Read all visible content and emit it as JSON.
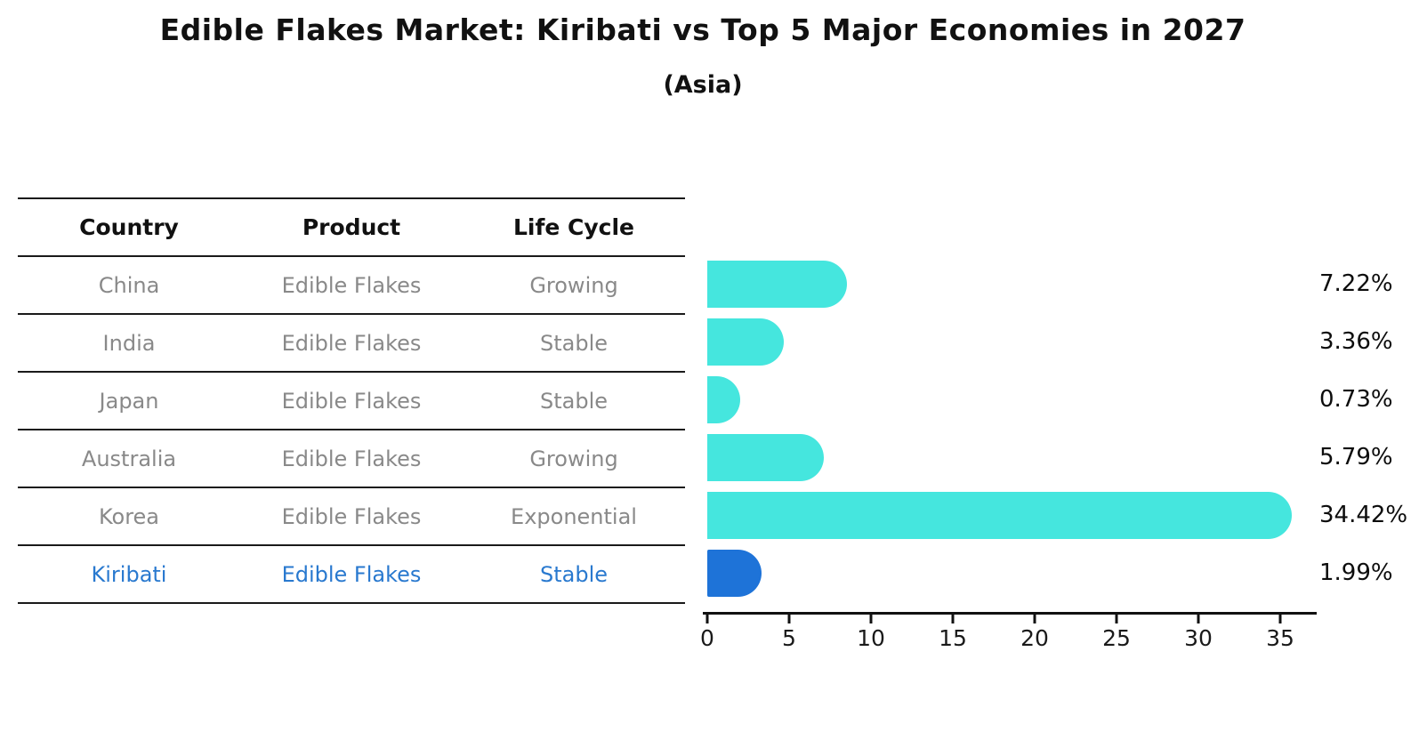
{
  "title": "Edible Flakes Market: Kiribati vs Top 5 Major Economies in 2027",
  "subtitle": "(Asia)",
  "table": {
    "columns": [
      "Country",
      "Product",
      "Life Cycle"
    ],
    "rows": [
      {
        "country": "China",
        "product": "Edible Flakes",
        "life_cycle": "Growing",
        "highlight": false
      },
      {
        "country": "India",
        "product": "Edible Flakes",
        "life_cycle": "Stable",
        "highlight": false
      },
      {
        "country": "Japan",
        "product": "Edible Flakes",
        "life_cycle": "Stable",
        "highlight": false
      },
      {
        "country": "Australia",
        "product": "Edible Flakes",
        "life_cycle": "Growing",
        "highlight": false
      },
      {
        "country": "Korea",
        "product": "Edible Flakes",
        "life_cycle": "Exponential",
        "highlight": false
      },
      {
        "country": "Kiribati",
        "product": "Edible Flakes",
        "life_cycle": "Stable",
        "highlight": true
      }
    ]
  },
  "chart_data": {
    "type": "bar",
    "orientation": "horizontal",
    "title": "Edible Flakes Market: Kiribati vs Top 5 Major Economies in 2027",
    "subtitle": "(Asia)",
    "categories": [
      "China",
      "India",
      "Japan",
      "Australia",
      "Korea",
      "Kiribati"
    ],
    "values": [
      7.22,
      3.36,
      0.73,
      5.79,
      34.42,
      1.99
    ],
    "value_labels": [
      "7.22%",
      "3.36%",
      "0.73%",
      "5.79%",
      "34.42%",
      "1.99%"
    ],
    "xlabel": "",
    "ylabel": "",
    "x_ticks": [
      0,
      5,
      10,
      15,
      20,
      25,
      30,
      35
    ],
    "xlim": [
      0,
      36
    ],
    "grid": false,
    "legend": false,
    "colors": {
      "bar_default": "#45e6de",
      "bar_highlight": "#1e73d8",
      "highlight_text": "#2979cf",
      "table_body_text": "#898989",
      "header_text": "#111111"
    }
  }
}
